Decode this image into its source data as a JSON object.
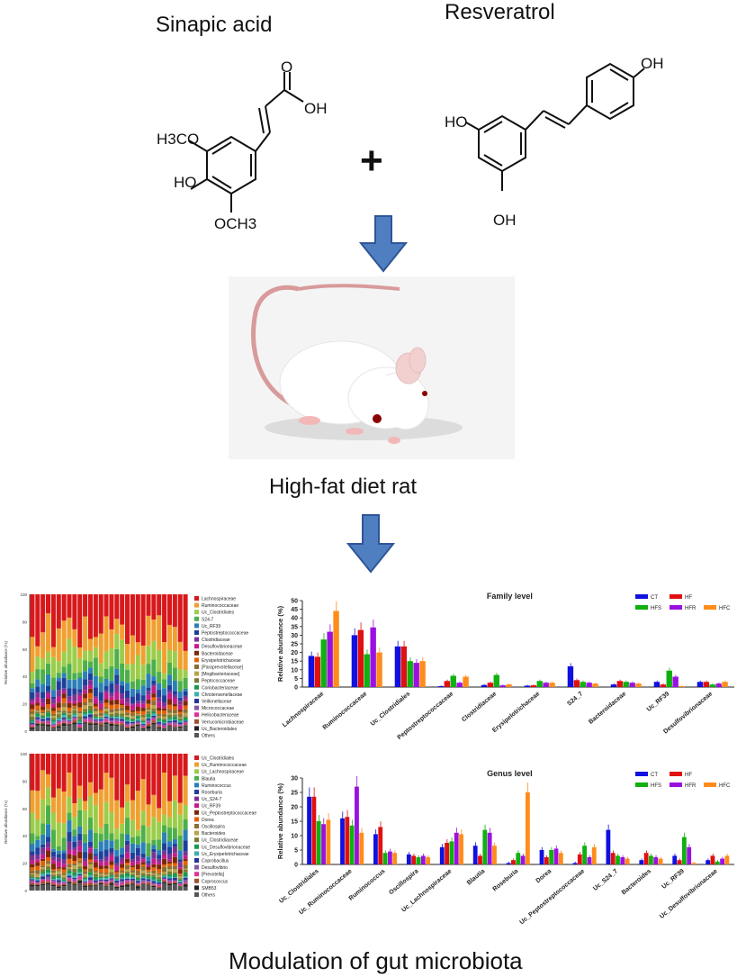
{
  "compounds": {
    "left_name": "Sinapic acid",
    "right_name": "Resveratrol",
    "plus": "+",
    "sinapic_labels": {
      "o": "O",
      "oh": "OH",
      "h3co": "H3CO",
      "ho": "HO",
      "och3": "OCH3"
    },
    "resveratrol_labels": {
      "oh_top": "OH",
      "ho_left": "HO",
      "oh_bottom": "OH"
    }
  },
  "animal": {
    "caption": "High-fat diet rat"
  },
  "footer": {
    "caption": "Modulation of gut microbiota"
  },
  "stacked_family": {
    "y_label": "Relative abundance (%)",
    "y_ticks": [
      "0",
      "20",
      "40",
      "60",
      "80",
      "100"
    ],
    "legend": [
      "Lachnospiraceae",
      "Ruminococcaceae",
      "Uc_Clostridiales",
      "S24-7",
      "Uc_RF39",
      "Peptostreptococcaceae",
      "Clostridiaceae",
      "Desulfovibrionaceae",
      "Bacteroidaceae",
      "Erysipelotrichaceae",
      "[Paraprevotellaceae]",
      "[Mogibacteriaceae]",
      "Peptococcaceae",
      "Coriobacteriaceae",
      "Christensenellaceae",
      "Veillonellaceae",
      "Micrococcaceae",
      "Helicobacteraceae",
      "Verrucomicrobiaceae",
      "Uc_Bacteroidales",
      "Others"
    ],
    "colors": [
      "#d7191c",
      "#f0a030",
      "#9bcd4b",
      "#4daf4a",
      "#2c7fb8",
      "#1f3f9a",
      "#7b3294",
      "#c51b8a",
      "#7f2704",
      "#e66101",
      "#8c6d31",
      "#b8a44a",
      "#7a7a30",
      "#1a9850",
      "#3bb0b0",
      "#253494",
      "#8856a7",
      "#dd3497",
      "#a0522d",
      "#222222",
      "#555555"
    ]
  },
  "stacked_genus": {
    "y_label": "Relative abundance (%)",
    "y_ticks": [
      "0",
      "20",
      "40",
      "60",
      "80",
      "100"
    ],
    "legend": [
      "Uc_Clostridiales",
      "Uc_Ruminococcaceae",
      "Uc_Lachnospiraceae",
      "Blautia",
      "Ruminococcus",
      "Roseburia",
      "Uc_S24-7",
      "Uc_RF39",
      "Uc_Peptostreptococcaceae",
      "Dorea",
      "Oscillospira",
      "Bacteroides",
      "Uc_Clostridiaceae",
      "Uc_Desulfovibrionaceae",
      "Uc_Erysipelotrichaceae",
      "Coprobacillus",
      "Desulfovibrio",
      "[Prevotella]",
      "Coprococcus",
      "SMB53",
      "Others"
    ],
    "colors": [
      "#d7191c",
      "#f0a030",
      "#9bcd4b",
      "#4daf4a",
      "#2c7fb8",
      "#1f3f9a",
      "#7b3294",
      "#c51b8a",
      "#7f2704",
      "#e66101",
      "#8c6d31",
      "#b8a44a",
      "#7a7a30",
      "#1a9850",
      "#3bb0b0",
      "#253494",
      "#8856a7",
      "#dd3497",
      "#a0522d",
      "#222222",
      "#555555"
    ]
  },
  "chart_data": [
    {
      "type": "bar",
      "title": "Family level",
      "ylabel": "Relative abundance (%)",
      "ylim": [
        0,
        50
      ],
      "yticks": [
        0,
        5,
        10,
        15,
        20,
        25,
        30,
        35,
        40,
        45,
        50
      ],
      "legend_position": "top-right",
      "categories": [
        "Lachnospiraceae",
        "Ruminococcaceae",
        "Uc_Clostridiales",
        "Peptostreptococcaceae",
        "Clostridiaceae",
        "Erysipelotrichaceae",
        "S24_7",
        "Bacteroidaceae",
        "Uc_RF39",
        "Desulfovibrionaceae"
      ],
      "series": [
        {
          "name": "CT",
          "color": "#1010e0",
          "values": [
            18,
            30,
            23.5,
            0.5,
            1.2,
            0.8,
            12,
            1.5,
            3,
            3
          ]
        },
        {
          "name": "HF",
          "color": "#e01010",
          "values": [
            17.5,
            33,
            23.5,
            3.5,
            2.5,
            1,
            4,
            3.5,
            1.5,
            3
          ]
        },
        {
          "name": "HFS",
          "color": "#10b010",
          "values": [
            27.5,
            19,
            15,
            6.5,
            7,
            3.5,
            3,
            3,
            9.5,
            1.5
          ]
        },
        {
          "name": "HFR",
          "color": "#9a10e0",
          "values": [
            32,
            34.5,
            14,
            2.5,
            1,
            2.5,
            2.5,
            2.5,
            6,
            2
          ]
        },
        {
          "name": "HFC",
          "color": "#ff8c1a",
          "values": [
            44,
            20,
            15,
            6,
            1.5,
            2.5,
            2,
            2,
            0.5,
            3
          ]
        }
      ]
    },
    {
      "type": "bar",
      "title": "Genus level",
      "ylabel": "Relative abundance (%)",
      "ylim": [
        0,
        30
      ],
      "yticks": [
        0,
        5,
        10,
        15,
        20,
        25,
        30
      ],
      "legend_position": "top-right",
      "categories": [
        "Uc_Clostridiales",
        "Uc_Ruminococcaceae",
        "Ruminococcus",
        "Oscillospira",
        "Uc_Lachnospiraceae",
        "Blautia",
        "Roseburia",
        "Dorea",
        "Uc_Peptostreptococcaceae",
        "Uc_S24_7",
        "Bacteroides",
        "Uc_RF39",
        "Uc_Desulfovibrionaceae"
      ],
      "series": [
        {
          "name": "CT",
          "color": "#1010e0",
          "values": [
            23.5,
            16,
            10.5,
            3.5,
            6,
            6.5,
            0.5,
            5,
            0.5,
            12,
            1.5,
            3,
            1.5
          ]
        },
        {
          "name": "HF",
          "color": "#e01010",
          "values": [
            23.5,
            16.5,
            13,
            3,
            7.5,
            3,
            1.5,
            2.5,
            3.5,
            4,
            4,
            1.5,
            3
          ]
        },
        {
          "name": "HFS",
          "color": "#10b010",
          "values": [
            15,
            13.5,
            4,
            2.5,
            8,
            12,
            4,
            5,
            6.5,
            3,
            3,
            9.5,
            1
          ]
        },
        {
          "name": "HFR",
          "color": "#9a10e0",
          "values": [
            14,
            27,
            4.5,
            3,
            11,
            11,
            3,
            5.5,
            2.5,
            2.5,
            2.5,
            6,
            2
          ]
        },
        {
          "name": "HFC",
          "color": "#ff8c1a",
          "values": [
            15.5,
            11,
            4,
            2.5,
            10.5,
            6.5,
            25,
            4,
            6,
            2,
            2,
            0.5,
            3
          ]
        }
      ]
    }
  ]
}
